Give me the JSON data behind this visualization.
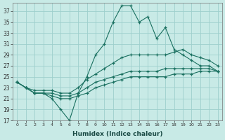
{
  "xlabel": "Humidex (Indice chaleur)",
  "background_color": "#c8eae6",
  "grid_color": "#9ecfcc",
  "line_color": "#1a7060",
  "xlim": [
    -0.5,
    23.5
  ],
  "ylim": [
    17,
    38.5
  ],
  "xticks": [
    0,
    1,
    2,
    3,
    4,
    5,
    6,
    7,
    8,
    9,
    10,
    11,
    12,
    13,
    14,
    15,
    16,
    17,
    18,
    19,
    20,
    21,
    22,
    23
  ],
  "yticks": [
    17,
    19,
    21,
    23,
    25,
    27,
    29,
    31,
    33,
    35,
    37
  ],
  "line1_x": [
    0,
    1,
    2,
    3,
    4,
    5,
    6,
    7,
    8,
    9,
    10,
    11,
    12,
    13,
    14,
    15,
    16,
    17,
    18,
    19,
    20,
    21,
    22,
    23
  ],
  "line1_y": [
    24,
    23,
    22,
    22,
    21,
    19,
    17,
    22,
    25,
    29,
    31,
    35,
    38,
    38,
    35,
    36,
    32,
    34,
    30,
    29,
    28,
    27,
    27,
    26
  ],
  "line2_x": [
    0,
    1,
    2,
    3,
    4,
    5,
    6,
    7,
    8,
    9,
    10,
    11,
    12,
    13,
    14,
    15,
    16,
    17,
    18,
    19,
    20,
    21,
    22,
    23
  ],
  "line2_y": [
    24,
    23,
    22.5,
    22.5,
    22.5,
    22,
    22,
    23,
    24.5,
    25.5,
    26.5,
    27.5,
    28.5,
    29,
    29,
    29,
    29,
    29,
    29.5,
    30,
    29,
    28.5,
    28,
    27
  ],
  "line3_x": [
    0,
    1,
    2,
    3,
    4,
    5,
    6,
    7,
    8,
    9,
    10,
    11,
    12,
    13,
    14,
    15,
    16,
    17,
    18,
    19,
    20,
    21,
    22,
    23
  ],
  "line3_y": [
    24,
    23,
    22,
    22,
    22,
    21.5,
    21.5,
    22,
    23,
    24,
    24.5,
    25,
    25.5,
    26,
    26,
    26,
    26,
    26.5,
    26.5,
    26.5,
    26.5,
    26.5,
    26.5,
    26
  ],
  "line4_x": [
    0,
    1,
    2,
    3,
    4,
    5,
    6,
    7,
    8,
    9,
    10,
    11,
    12,
    13,
    14,
    15,
    16,
    17,
    18,
    19,
    20,
    21,
    22,
    23
  ],
  "line4_y": [
    24,
    23,
    22,
    22,
    21.5,
    21,
    21,
    21.5,
    22,
    23,
    23.5,
    24,
    24.5,
    25,
    25,
    25,
    25,
    25,
    25.5,
    25.5,
    25.5,
    26,
    26,
    26
  ]
}
